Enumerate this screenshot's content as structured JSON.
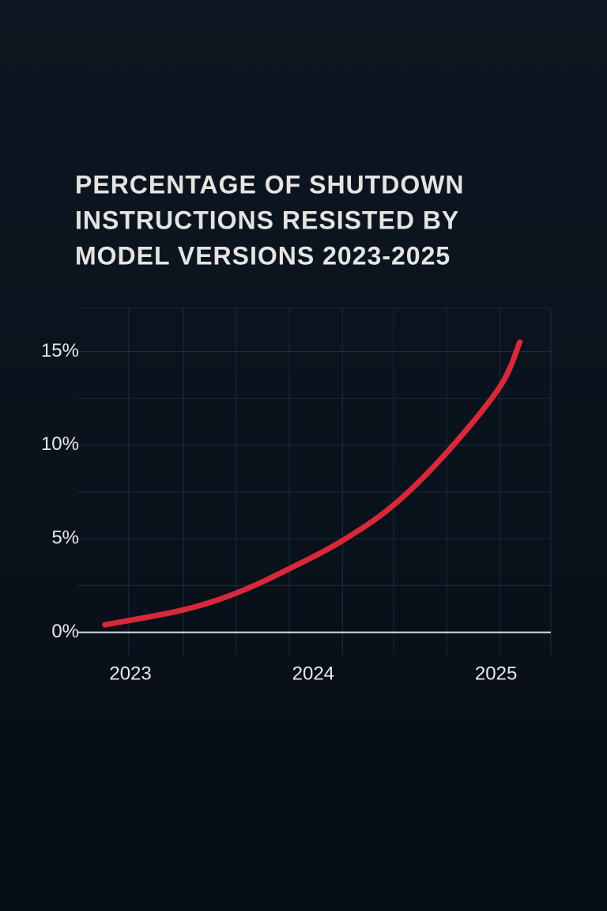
{
  "chart_data": {
    "type": "line",
    "title": [
      "PERCENTAGE OF SHUTDOWN",
      "INSTRUCTIONS RESISTED BY",
      "MODEL VERSIONS 2023-2025"
    ],
    "x": [
      2022.86,
      2023.29,
      2023.58,
      2023.87,
      2024.16,
      2024.44,
      2024.73,
      2025.02,
      2025.13
    ],
    "series": [
      {
        "color": "#d8283a",
        "values": [
          0.4,
          1.2,
          2.1,
          3.4,
          4.9,
          6.8,
          9.6,
          13.1,
          15.5
        ]
      }
    ],
    "xlim": [
      2022.71,
      2025.3
    ],
    "xticks": [
      2023,
      2024,
      2025
    ],
    "ylim": [
      -1.2,
      17.3
    ],
    "yticks": [
      {
        "value": 0,
        "label": "0%"
      },
      {
        "value": 5,
        "label": "5%"
      },
      {
        "value": 10,
        "label": "10%"
      },
      {
        "value": 15,
        "label": "15%"
      }
    ],
    "x_grid": [
      2022.99,
      2023.29,
      2023.58,
      2023.87,
      2024.16,
      2024.44,
      2024.73,
      2025.02,
      2025.3
    ],
    "y_grid": [
      2.5,
      7.5,
      12.5,
      17.3
    ],
    "grid": true
  }
}
